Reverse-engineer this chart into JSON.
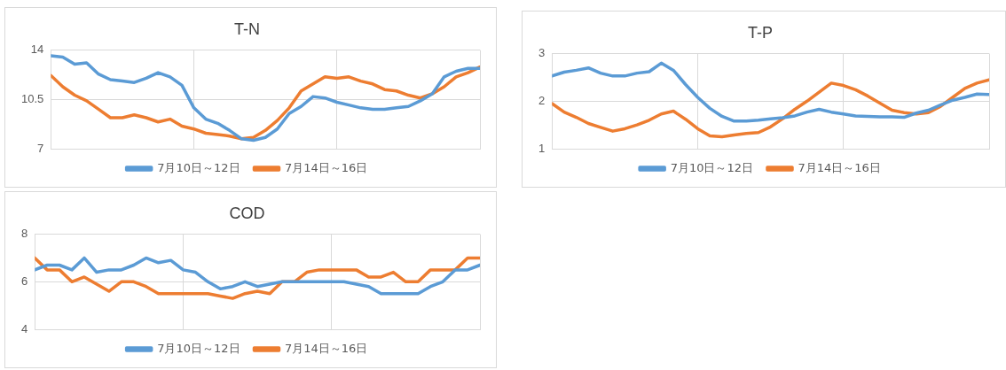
{
  "chart_data": [
    {
      "type": "line",
      "title": "T-N",
      "categories": [
        null,
        null,
        null,
        null,
        null,
        null,
        null,
        null,
        null,
        null,
        null,
        null,
        null,
        null,
        null,
        null,
        null,
        null,
        null,
        null,
        null,
        null,
        null,
        null,
        null,
        null,
        null,
        null,
        null,
        null,
        null,
        null,
        null,
        null,
        null,
        null,
        null
      ],
      "ylim": [
        7,
        14
      ],
      "yticks": [
        7,
        10.5,
        14
      ],
      "grid": true,
      "legend": "bottom",
      "marker": "none",
      "tick_labels": "y",
      "series": [
        {
          "name": "7月10日～12日",
          "color": "#5b9bd5",
          "values": [
            13.6,
            13.5,
            13.0,
            13.1,
            12.3,
            11.9,
            11.8,
            11.7,
            12.0,
            12.4,
            12.1,
            11.5,
            9.9,
            9.1,
            8.8,
            8.3,
            7.7,
            7.6,
            7.8,
            8.4,
            9.5,
            10.0,
            10.7,
            10.6,
            10.3,
            10.1,
            9.9,
            9.8,
            9.8,
            9.9,
            10.0,
            10.4,
            10.9,
            12.1,
            12.5,
            12.7,
            12.7
          ]
        },
        {
          "name": "7月14日～16日",
          "color": "#ed7d31",
          "values": [
            12.2,
            11.4,
            10.8,
            10.4,
            9.8,
            9.2,
            9.2,
            9.4,
            9.2,
            8.9,
            9.1,
            8.6,
            8.4,
            8.1,
            8.0,
            7.9,
            7.7,
            7.8,
            8.3,
            9.0,
            9.9,
            11.1,
            11.6,
            12.1,
            12.0,
            12.1,
            11.8,
            11.6,
            11.2,
            11.1,
            10.8,
            10.6,
            10.9,
            11.4,
            12.1,
            12.4,
            12.8
          ]
        }
      ]
    },
    {
      "type": "line",
      "title": "T-P",
      "categories": [
        null,
        null,
        null,
        null,
        null,
        null,
        null,
        null,
        null,
        null,
        null,
        null,
        null,
        null,
        null,
        null,
        null,
        null,
        null,
        null,
        null,
        null,
        null,
        null,
        null,
        null,
        null,
        null,
        null,
        null,
        null,
        null,
        null,
        null,
        null,
        null,
        null
      ],
      "ylim": [
        1,
        3
      ],
      "yticks": [
        1,
        2,
        3
      ],
      "grid": true,
      "legend": "bottom",
      "marker": "none",
      "tick_labels": "y",
      "series": [
        {
          "name": "7月10日～12日",
          "color": "#5b9bd5",
          "values": [
            2.53,
            2.61,
            2.65,
            2.7,
            2.59,
            2.53,
            2.53,
            2.59,
            2.62,
            2.8,
            2.65,
            2.35,
            2.08,
            1.85,
            1.68,
            1.58,
            1.58,
            1.6,
            1.63,
            1.65,
            1.69,
            1.77,
            1.83,
            1.77,
            1.73,
            1.69,
            1.68,
            1.67,
            1.67,
            1.66,
            1.75,
            1.81,
            1.92,
            2.02,
            2.08,
            2.15,
            2.14
          ]
        },
        {
          "name": "7月14日～16日",
          "color": "#ed7d31",
          "values": [
            1.95,
            1.77,
            1.66,
            1.53,
            1.45,
            1.37,
            1.42,
            1.5,
            1.6,
            1.73,
            1.79,
            1.62,
            1.42,
            1.27,
            1.25,
            1.29,
            1.32,
            1.34,
            1.46,
            1.63,
            1.83,
            2.0,
            2.19,
            2.38,
            2.33,
            2.24,
            2.11,
            1.96,
            1.81,
            1.76,
            1.73,
            1.76,
            1.89,
            2.08,
            2.27,
            2.38,
            2.45
          ]
        }
      ]
    },
    {
      "type": "line",
      "title": "COD",
      "categories": [
        null,
        null,
        null,
        null,
        null,
        null,
        null,
        null,
        null,
        null,
        null,
        null,
        null,
        null,
        null,
        null,
        null,
        null,
        null,
        null,
        null,
        null,
        null,
        null,
        null,
        null,
        null,
        null,
        null,
        null,
        null,
        null,
        null,
        null,
        null,
        null,
        null
      ],
      "ylim": [
        4,
        8
      ],
      "yticks": [
        4,
        6,
        8
      ],
      "grid": true,
      "legend": "bottom",
      "marker": "none",
      "tick_labels": "y",
      "series": [
        {
          "name": "7月10日～12日",
          "color": "#5b9bd5",
          "values": [
            6.5,
            6.7,
            6.7,
            6.5,
            7.0,
            6.4,
            6.5,
            6.5,
            6.7,
            7.0,
            6.8,
            6.9,
            6.5,
            6.4,
            6.0,
            5.7,
            5.8,
            6.0,
            5.8,
            5.9,
            6.0,
            6.0,
            6.0,
            6.0,
            6.0,
            6.0,
            5.9,
            5.8,
            5.5,
            5.5,
            5.5,
            5.5,
            5.8,
            6.0,
            6.5,
            6.5,
            6.7
          ]
        },
        {
          "name": "7月14日～16日",
          "color": "#ed7d31",
          "values": [
            7.0,
            6.5,
            6.5,
            6.0,
            6.2,
            5.9,
            5.6,
            6.0,
            6.0,
            5.8,
            5.5,
            5.5,
            5.5,
            5.5,
            5.5,
            5.4,
            5.3,
            5.5,
            5.6,
            5.5,
            6.0,
            6.0,
            6.4,
            6.5,
            6.5,
            6.5,
            6.5,
            6.2,
            6.2,
            6.4,
            6.0,
            6.0,
            6.5,
            6.5,
            6.5,
            7.0,
            7.0
          ]
        }
      ]
    }
  ]
}
